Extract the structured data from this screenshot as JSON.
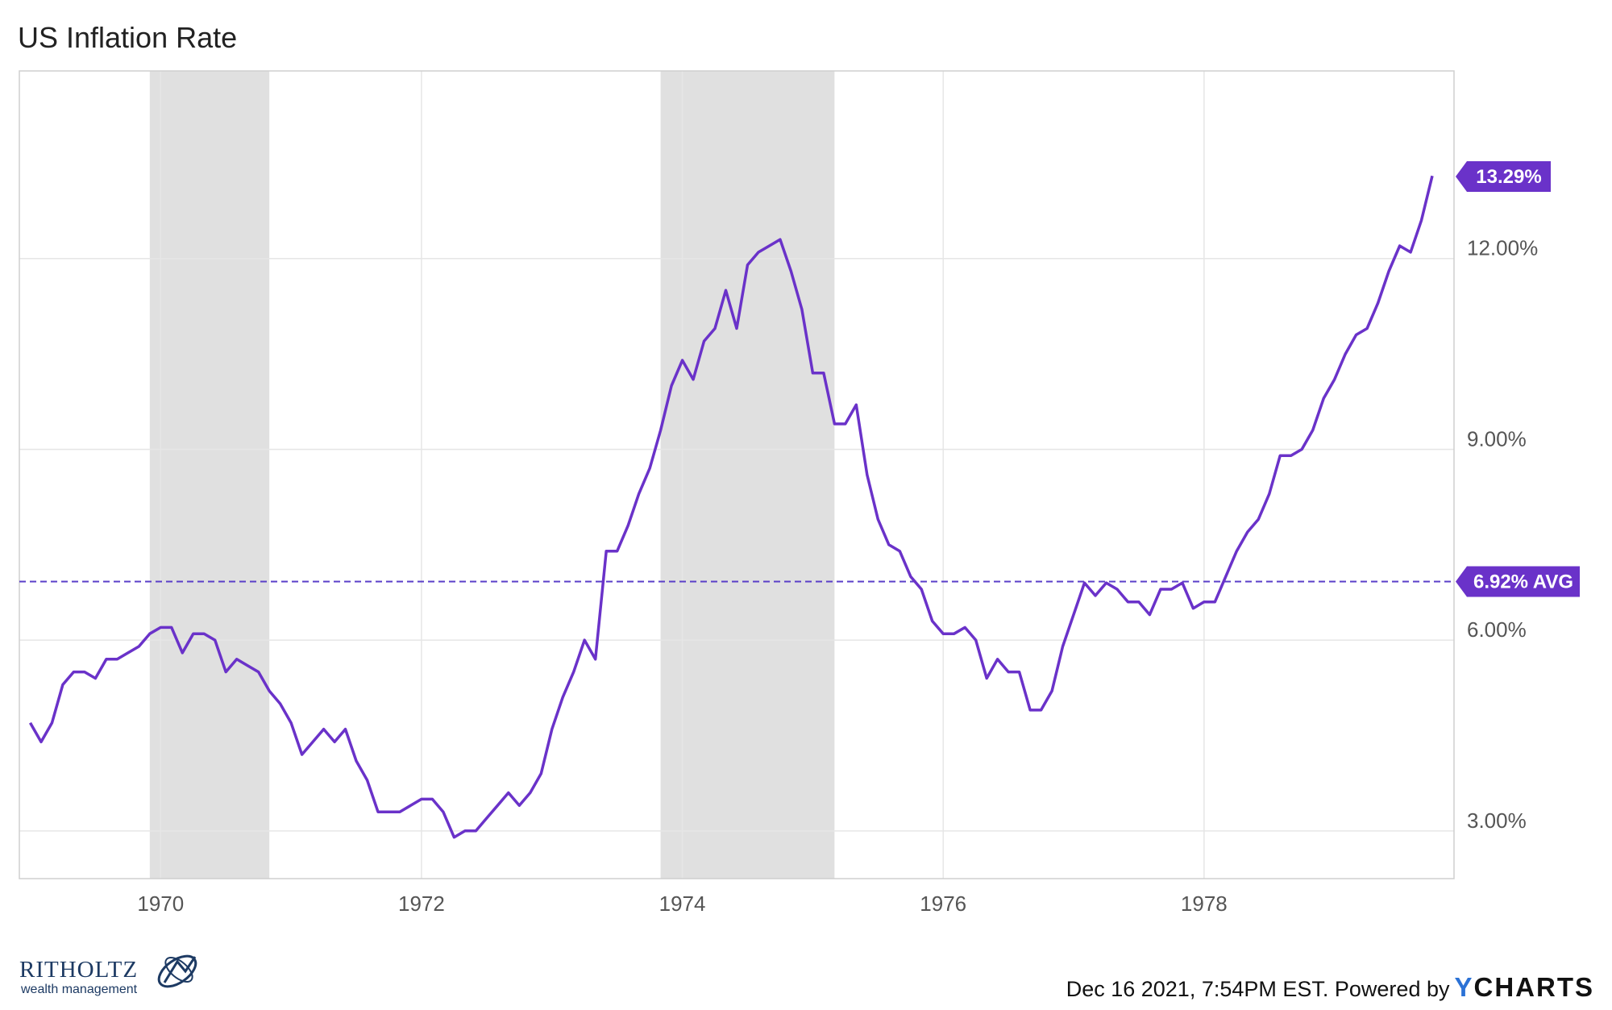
{
  "chart_data": {
    "type": "line",
    "title": "US Inflation Rate",
    "xlabel": "",
    "ylabel": "",
    "x_ticks": [
      "1970",
      "1972",
      "1974",
      "1976",
      "1978"
    ],
    "y_ticks": [
      "3.00%",
      "6.00%",
      "9.00%",
      "12.00%"
    ],
    "ylim": [
      2.25,
      14.95
    ],
    "xlim": [
      "1968-12",
      "1979-12"
    ],
    "grid": true,
    "recessions": [
      {
        "start": "1969-12",
        "end": "1970-11"
      },
      {
        "start": "1973-11",
        "end": "1975-03"
      }
    ],
    "average": {
      "value": 6.92,
      "label": "6.92% AVG"
    },
    "last_value": {
      "value": 13.29,
      "label": "13.29%"
    },
    "series": [
      {
        "color": "#6a32c9",
        "start": "1969-01",
        "values": [
          4.7,
          4.4,
          4.7,
          5.3,
          5.5,
          5.5,
          5.4,
          5.7,
          5.7,
          5.8,
          5.9,
          6.1,
          6.2,
          6.2,
          5.8,
          6.1,
          6.1,
          6.0,
          5.5,
          5.7,
          5.6,
          5.5,
          5.2,
          5.0,
          4.7,
          4.2,
          4.4,
          4.6,
          4.4,
          4.6,
          4.1,
          3.8,
          3.3,
          3.3,
          3.3,
          3.4,
          3.5,
          3.5,
          3.3,
          2.9,
          3.0,
          3.0,
          3.2,
          3.4,
          3.6,
          3.4,
          3.6,
          3.9,
          4.6,
          5.1,
          5.5,
          6.0,
          5.7,
          7.4,
          7.4,
          7.8,
          8.3,
          8.7,
          9.3,
          10.0,
          10.4,
          10.1,
          10.7,
          10.9,
          11.5,
          10.9,
          11.9,
          12.1,
          12.2,
          12.3,
          11.8,
          11.2,
          10.2,
          10.2,
          9.4,
          9.4,
          9.7,
          8.6,
          7.9,
          7.5,
          7.4,
          7.0,
          6.8,
          6.3,
          6.1,
          6.1,
          6.2,
          6.0,
          5.4,
          5.7,
          5.5,
          5.5,
          4.9,
          4.9,
          5.2,
          5.9,
          6.4,
          6.9,
          6.7,
          6.9,
          6.8,
          6.6,
          6.6,
          6.4,
          6.8,
          6.8,
          6.9,
          6.5,
          6.6,
          6.6,
          7.0,
          7.4,
          7.7,
          7.9,
          8.3,
          8.9,
          8.9,
          9.0,
          9.3,
          9.8,
          10.1,
          10.5,
          10.8,
          10.9,
          11.3,
          11.8,
          12.2,
          12.1,
          12.6,
          13.3
        ]
      }
    ]
  },
  "logo": {
    "name": "RITHOLTZ",
    "sub": "wealth management"
  },
  "footer": {
    "timestamp": "Dec 16 2021, 7:54PM EST. Powered by",
    "brand_y": "Y",
    "brand_rest": "CHARTS"
  }
}
